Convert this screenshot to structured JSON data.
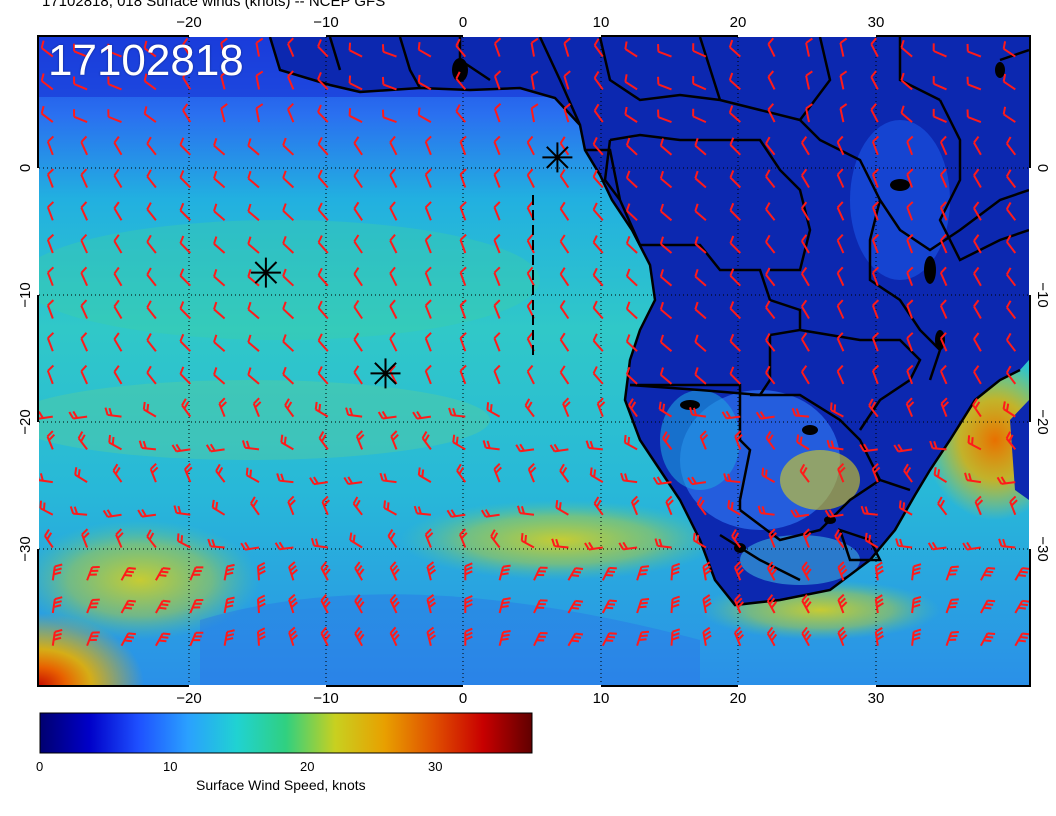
{
  "header": {
    "title": "17102818, 018 Surface winds (knots) -- NCEP GFS"
  },
  "map": {
    "datestamp": "17102818",
    "lon_ticks_top": [
      "−20",
      "−10",
      "0",
      "10",
      "20",
      "30"
    ],
    "lon_ticks_bottom": [
      "−20",
      "−10",
      "0",
      "10",
      "20",
      "30"
    ],
    "lat_ticks_left": [
      "0",
      "−10",
      "−20",
      "−30"
    ],
    "lat_ticks_right": [
      "0",
      "−10",
      "−20",
      "−30"
    ],
    "lon_range": [
      -31,
      41
    ],
    "lat_range": [
      -40,
      9.5
    ],
    "wind_barb_color": "#ff1a1a",
    "storm_markers": [
      {
        "lon": 6.7,
        "lat": 0.3
      },
      {
        "lon": -14.5,
        "lat": -8.5
      },
      {
        "lon": -5.8,
        "lat": -16.2
      }
    ]
  },
  "colorbar": {
    "title": "Surface Wind Speed, knots",
    "tick_labels": [
      "0",
      "10",
      "20",
      "30"
    ],
    "range": [
      0,
      36
    ],
    "colors": [
      "#000070",
      "#0000c8",
      "#1e50ff",
      "#2aa0ff",
      "#20d2d2",
      "#30d080",
      "#c8d020",
      "#e8a000",
      "#e05000",
      "#c80000",
      "#600000"
    ]
  }
}
